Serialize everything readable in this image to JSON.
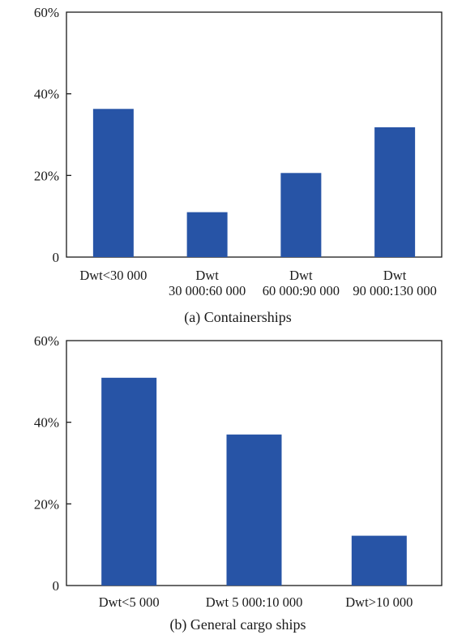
{
  "chart_data": [
    {
      "type": "bar",
      "title": "(a) Containerships",
      "categories": [
        [
          "Dwt<30 000"
        ],
        [
          "Dwt",
          "30 000:60 000"
        ],
        [
          "Dwt",
          "60 000:90 000"
        ],
        [
          "Dwt",
          "90 000:130 000"
        ]
      ],
      "values": [
        36.3,
        11.0,
        20.6,
        31.8
      ],
      "ylim": [
        0,
        60
      ],
      "yticks": [
        "0",
        "20%",
        "40%",
        "60%"
      ],
      "ytick_values": [
        0,
        20,
        40,
        60
      ],
      "xlabel": "",
      "ylabel": "",
      "grid": false,
      "bar_color": "#2754a6"
    },
    {
      "type": "bar",
      "title": "(b) General cargo ships",
      "categories": [
        [
          "Dwt<5 000"
        ],
        [
          "Dwt 5 000:10 000"
        ],
        [
          "Dwt>10 000"
        ]
      ],
      "values": [
        50.9,
        37.0,
        12.2
      ],
      "ylim": [
        0,
        60
      ],
      "yticks": [
        "0",
        "20%",
        "40%",
        "60%"
      ],
      "ytick_values": [
        0,
        20,
        40,
        60
      ],
      "xlabel": "",
      "ylabel": "",
      "grid": false,
      "bar_color": "#2754a6"
    }
  ]
}
